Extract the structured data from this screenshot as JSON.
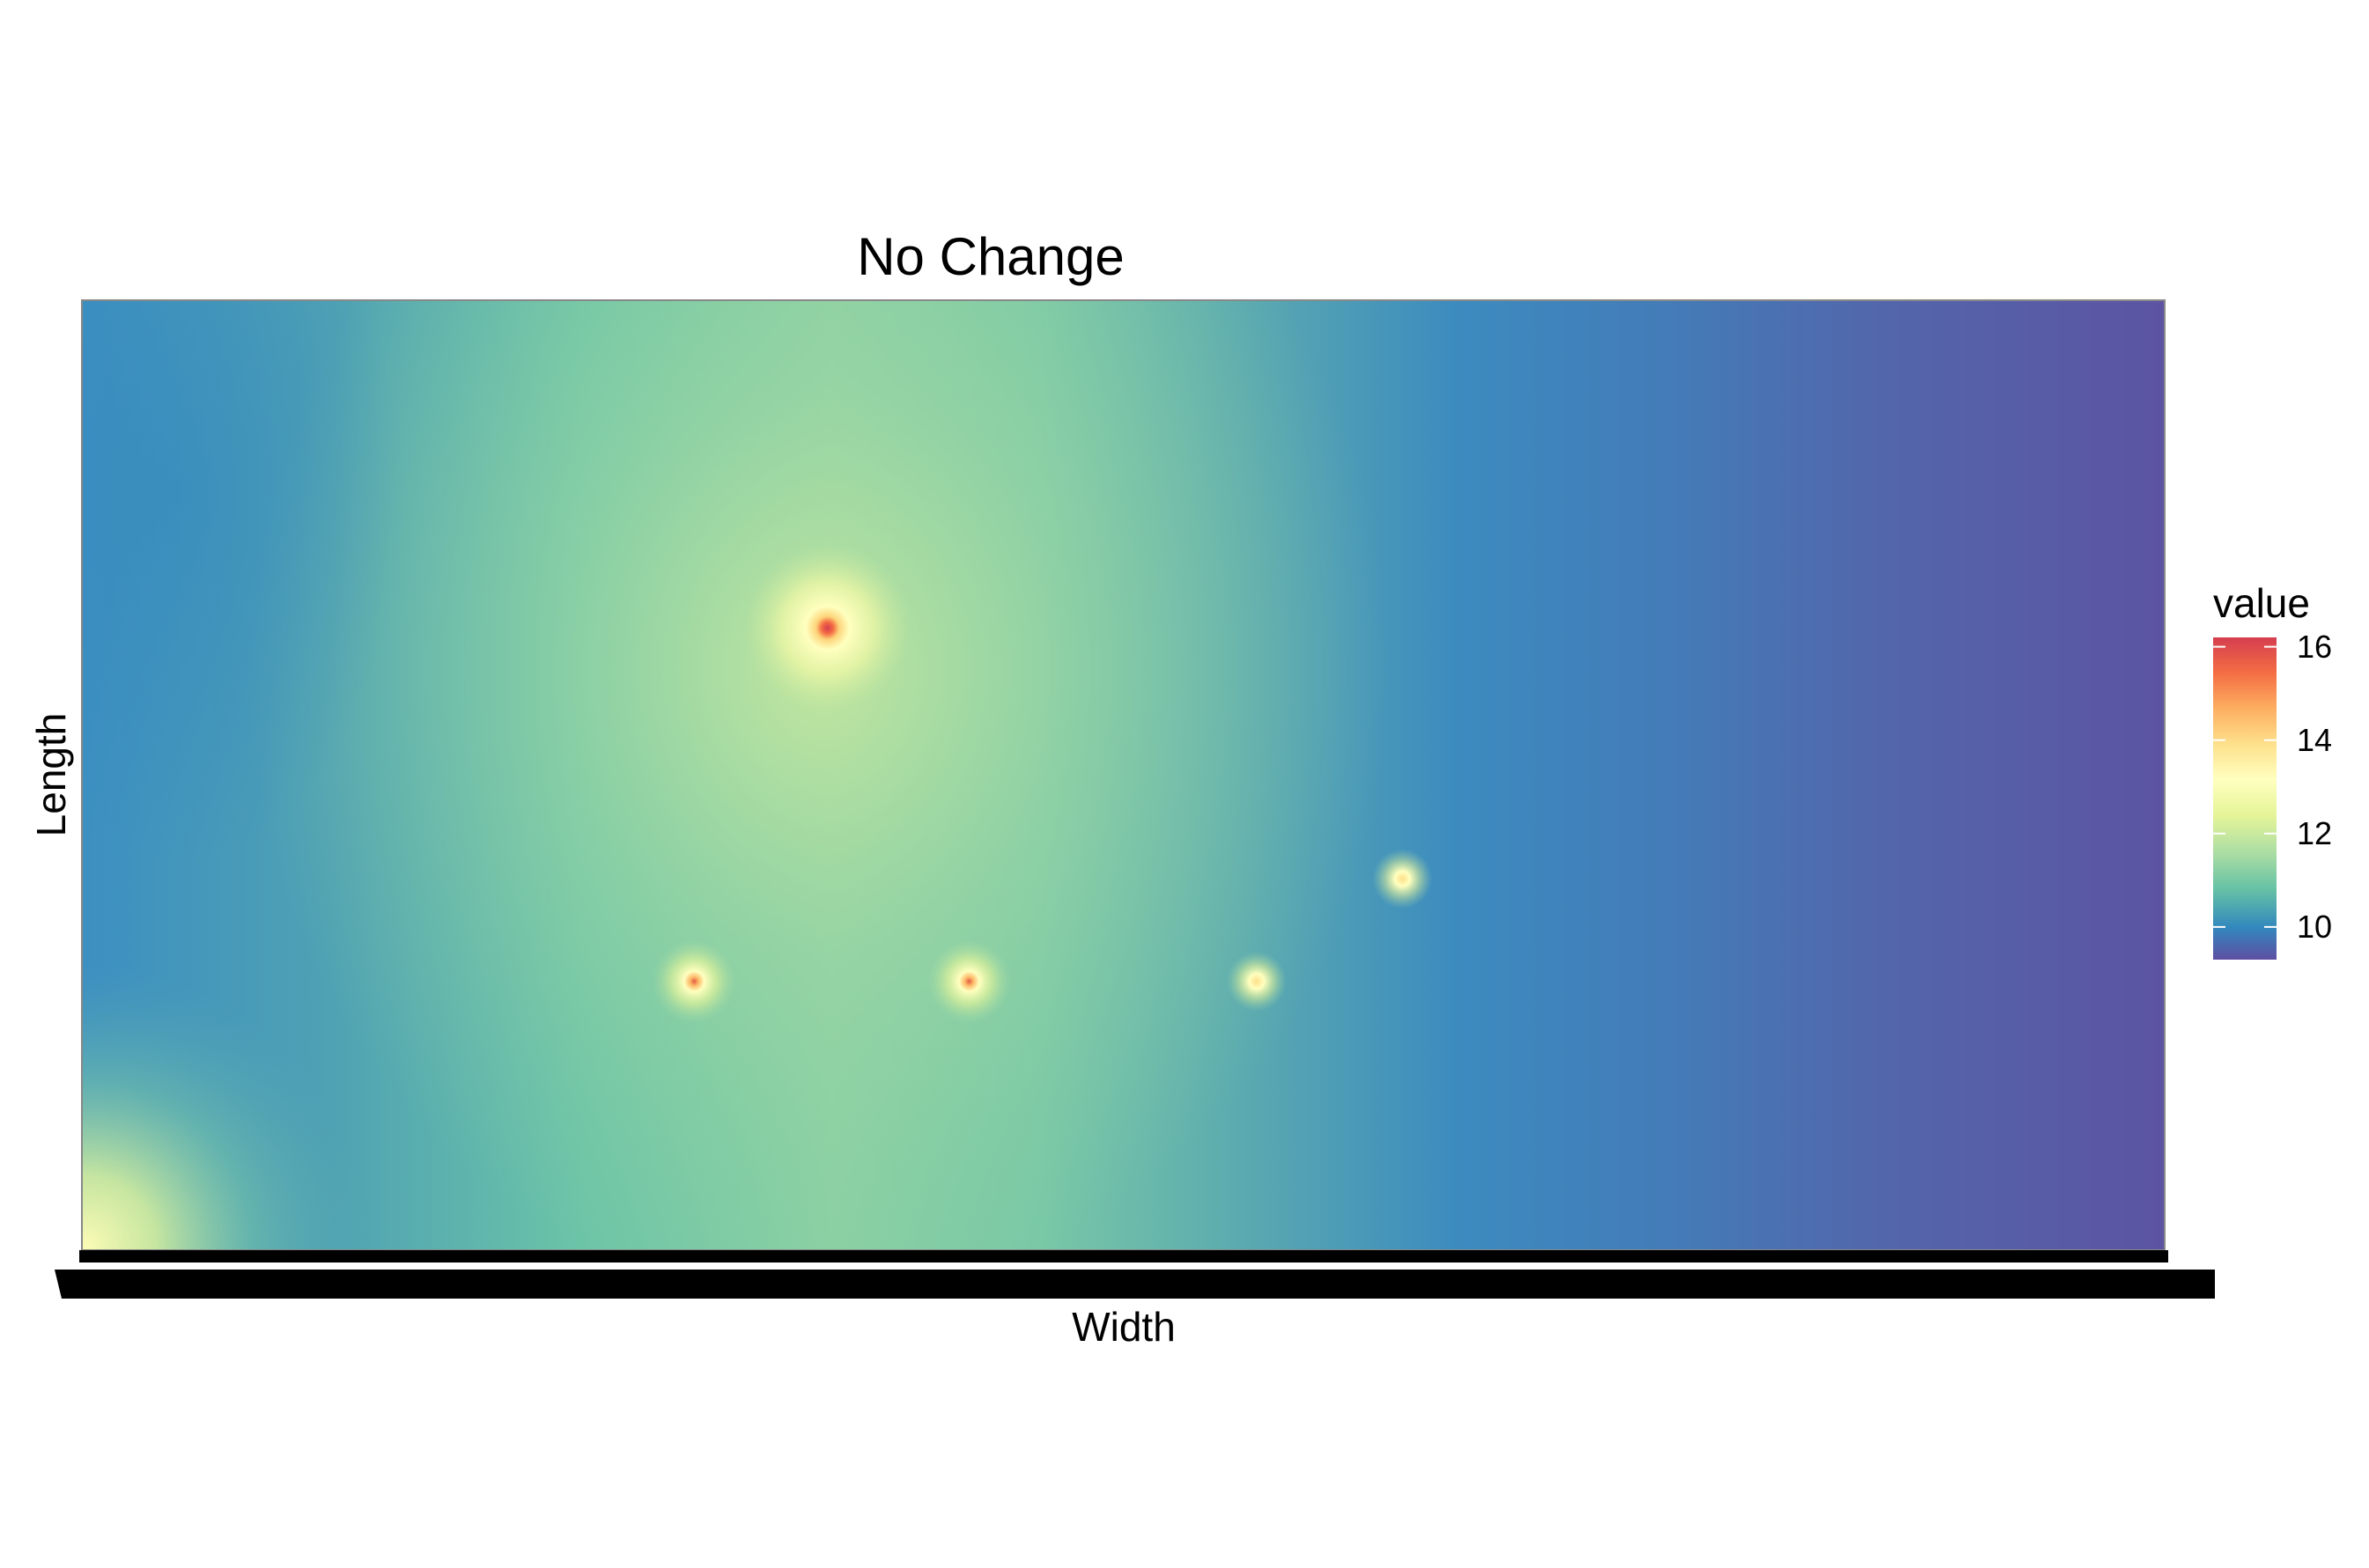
{
  "chart_data": {
    "type": "heatmap",
    "title": "No Change",
    "xlabel": "Width",
    "ylabel": "Length",
    "legend": {
      "title": "value",
      "placement": "right",
      "ticks": [
        "16",
        "14",
        "12",
        "10"
      ],
      "tick_values": [
        16,
        14,
        12,
        10
      ],
      "range": [
        9.3,
        16.2
      ],
      "colormap": "Spectral (reversed)",
      "stops": [
        {
          "value": 9.3,
          "color": "#5e4fa2"
        },
        {
          "value": 9.9,
          "color": "#3288bd"
        },
        {
          "value": 10.6,
          "color": "#66c2a5"
        },
        {
          "value": 11.4,
          "color": "#abdda4"
        },
        {
          "value": 12.2,
          "color": "#e6f598"
        },
        {
          "value": 13.0,
          "color": "#ffffbf"
        },
        {
          "value": 13.8,
          "color": "#fee08b"
        },
        {
          "value": 14.5,
          "color": "#fdae61"
        },
        {
          "value": 15.3,
          "color": "#f46d43"
        },
        {
          "value": 16.2,
          "color": "#d53e4f"
        }
      ]
    },
    "x_range": [
      0,
      1
    ],
    "y_range": [
      0,
      1
    ],
    "background_field": {
      "description": "smooth field, peaking around the upper-middle, lowest at the far right",
      "corner_bottom_left": 13,
      "center": 11.5,
      "left_edge_mid": 10.3,
      "right_edge": 9.4
    },
    "hotspots": [
      {
        "x": 0.358,
        "y": 0.655,
        "value": 16.2
      },
      {
        "x": 0.294,
        "y": 0.283,
        "value": 15.0
      },
      {
        "x": 0.426,
        "y": 0.283,
        "value": 14.8
      },
      {
        "x": 0.564,
        "y": 0.283,
        "value": 13.0
      },
      {
        "x": 0.634,
        "y": 0.391,
        "value": 13.3
      },
      {
        "x": 0.003,
        "y": 0.003,
        "value": 13.2
      }
    ],
    "grid": false,
    "x_tick_labels_note": "overlapping, illegible",
    "colors": {
      "panel_border": "#888888",
      "axis_bar": "#000000"
    }
  }
}
